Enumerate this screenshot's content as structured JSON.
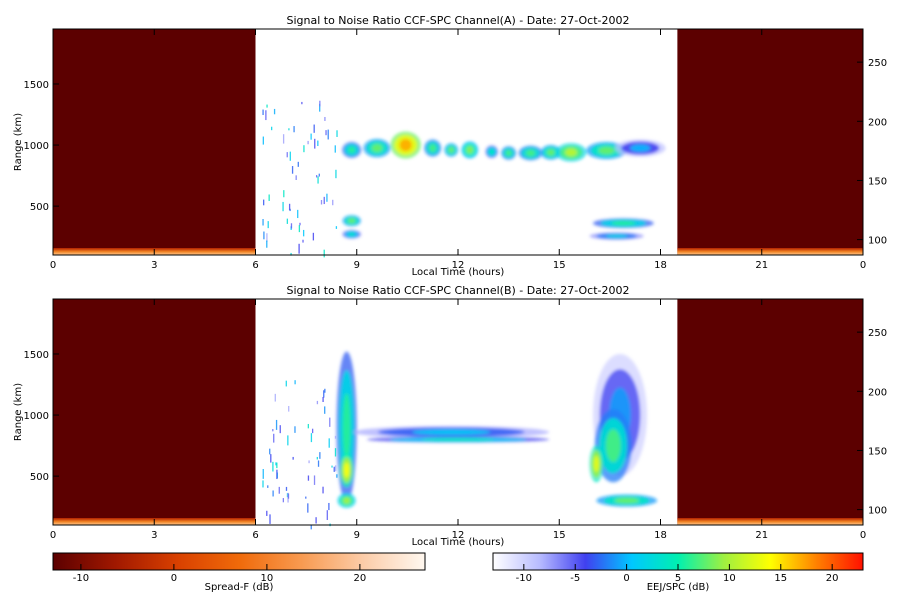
{
  "chart_data": [
    {
      "type": "heatmap",
      "title": "Signal to Noise Ratio CCF-SPC Channel(A) - Date: 27-Oct-2002",
      "xlabel": "Local Time (hours)",
      "ylabel": "Range (km)",
      "x_ticks": [
        "0",
        "3",
        "6",
        "9",
        "12",
        "15",
        "18",
        "21",
        "0"
      ],
      "y_ticks": [
        "500",
        "1000",
        "1500"
      ],
      "y2_ticks": [
        "100",
        "150",
        "200",
        "250"
      ],
      "xlim": [
        0,
        24
      ],
      "ylim": [
        100,
        1950
      ],
      "y2lim": [
        87,
        278
      ],
      "night_windows": [
        [
          0,
          6
        ],
        [
          18.5,
          24
        ]
      ],
      "night_color": "#5c0000",
      "echoes": [
        {
          "kind": "blob",
          "x": 8.85,
          "y": 960,
          "rx": 0.28,
          "ry": 65,
          "value": 2
        },
        {
          "kind": "blob",
          "x": 9.6,
          "y": 975,
          "rx": 0.4,
          "ry": 75,
          "value": 4
        },
        {
          "kind": "blob",
          "x": 10.45,
          "y": 1000,
          "rx": 0.45,
          "ry": 110,
          "value": 13
        },
        {
          "kind": "blob",
          "x": 11.25,
          "y": 975,
          "rx": 0.25,
          "ry": 70,
          "value": 3
        },
        {
          "kind": "blob",
          "x": 11.8,
          "y": 960,
          "rx": 0.2,
          "ry": 55,
          "value": 4
        },
        {
          "kind": "blob",
          "x": 12.35,
          "y": 960,
          "rx": 0.25,
          "ry": 70,
          "value": 5
        },
        {
          "kind": "blob",
          "x": 13.0,
          "y": 945,
          "rx": 0.18,
          "ry": 50,
          "value": 1
        },
        {
          "kind": "blob",
          "x": 13.5,
          "y": 935,
          "rx": 0.22,
          "ry": 55,
          "value": 3
        },
        {
          "kind": "blob",
          "x": 14.15,
          "y": 935,
          "rx": 0.35,
          "ry": 60,
          "value": 3
        },
        {
          "kind": "blob",
          "x": 14.75,
          "y": 940,
          "rx": 0.3,
          "ry": 60,
          "value": 4
        },
        {
          "kind": "blob",
          "x": 15.35,
          "y": 940,
          "rx": 0.45,
          "ry": 75,
          "value": 7
        },
        {
          "kind": "blob",
          "x": 16.4,
          "y": 955,
          "rx": 0.6,
          "ry": 70,
          "value": 4
        },
        {
          "kind": "blob",
          "x": 17.4,
          "y": 975,
          "rx": 0.75,
          "ry": 70,
          "value": -4
        },
        {
          "kind": "blob",
          "x": 8.85,
          "y": 380,
          "rx": 0.27,
          "ry": 45,
          "value": 4
        },
        {
          "kind": "blob",
          "x": 8.85,
          "y": 270,
          "rx": 0.27,
          "ry": 35,
          "value": 0
        },
        {
          "kind": "blob",
          "x": 16.9,
          "y": 360,
          "rx": 0.9,
          "ry": 40,
          "value": 2
        },
        {
          "kind": "blob",
          "x": 16.7,
          "y": 255,
          "rx": 0.8,
          "ry": 30,
          "value": -2
        }
      ]
    },
    {
      "type": "heatmap",
      "title": "Signal to Noise Ratio CCF-SPC Channel(B) - Date: 27-Oct-2002",
      "xlabel": "Local Time (hours)",
      "ylabel": "Range (km)",
      "x_ticks": [
        "0",
        "3",
        "6",
        "9",
        "12",
        "15",
        "18",
        "21",
        "0"
      ],
      "y_ticks": [
        "500",
        "1000",
        "1500"
      ],
      "y2_ticks": [
        "100",
        "150",
        "200",
        "250"
      ],
      "xlim": [
        0,
        24
      ],
      "ylim": [
        100,
        1950
      ],
      "y2lim": [
        87,
        278
      ],
      "night_windows": [
        [
          0,
          6
        ],
        [
          18.5,
          24
        ]
      ],
      "night_color": "#5c0000",
      "echoes": [
        {
          "kind": "blob",
          "x": 8.7,
          "y": 900,
          "rx": 0.3,
          "ry": 620,
          "value": 2
        },
        {
          "kind": "blob",
          "x": 8.7,
          "y": 550,
          "rx": 0.2,
          "ry": 140,
          "value": 10
        },
        {
          "kind": "blob",
          "x": 8.7,
          "y": 300,
          "rx": 0.27,
          "ry": 60,
          "value": 6
        },
        {
          "kind": "blob",
          "x": 11.8,
          "y": 860,
          "rx": 2.9,
          "ry": 50,
          "value": -3
        },
        {
          "kind": "blob",
          "x": 12.0,
          "y": 800,
          "rx": 2.7,
          "ry": 25,
          "value": 1
        },
        {
          "kind": "blob",
          "x": 16.8,
          "y": 1000,
          "rx": 0.8,
          "ry": 500,
          "value": -5
        },
        {
          "kind": "blob",
          "x": 16.6,
          "y": 750,
          "rx": 0.55,
          "ry": 300,
          "value": 3
        },
        {
          "kind": "blob",
          "x": 16.1,
          "y": 600,
          "rx": 0.2,
          "ry": 150,
          "value": 9
        },
        {
          "kind": "blob",
          "x": 17.0,
          "y": 300,
          "rx": 0.9,
          "ry": 50,
          "value": 4
        }
      ]
    },
    {
      "type": "colorbar",
      "label": "Spread-F (dB)",
      "ticks": [
        "-10",
        "0",
        "10",
        "20"
      ],
      "range": [
        -13,
        27
      ],
      "colors": [
        "#5c0000",
        "#a01800",
        "#d84000",
        "#f06a0a",
        "#f89a50",
        "#fccca8",
        "#fff8f0"
      ]
    },
    {
      "type": "colorbar",
      "label": "EEJ/SPC (dB)",
      "ticks": [
        "-10",
        "-5",
        "0",
        "5",
        "10",
        "15",
        "20"
      ],
      "range": [
        -13,
        23
      ],
      "colors": [
        "#ffffff",
        "#b8bcff",
        "#4040f0",
        "#00c8ff",
        "#00f0b0",
        "#a0f040",
        "#ffff00",
        "#ff8000",
        "#ff1000"
      ]
    }
  ]
}
